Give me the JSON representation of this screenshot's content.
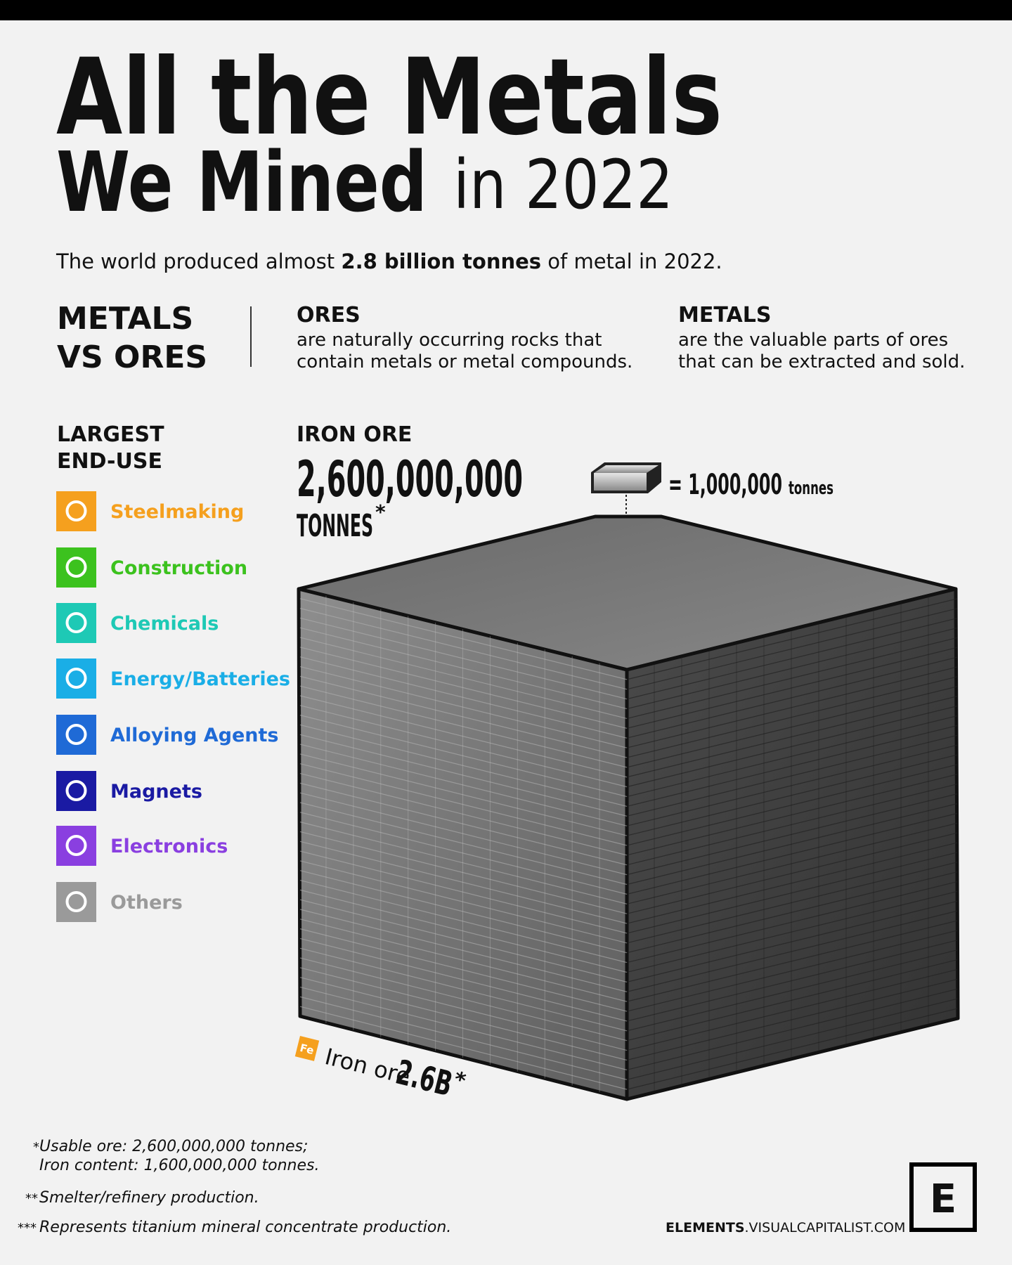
{
  "header": {
    "title_line1": "All the Metals",
    "title_line2_bold": "We Mined",
    "title_line2_rest": "in 2022"
  },
  "subtitle": {
    "pre": "The world produced almost ",
    "bold": "2.8 billion tonnes",
    "post": " of metal in 2022."
  },
  "definitions": {
    "heading_lines": [
      "METALS",
      "VS ORES"
    ],
    "ores": {
      "heading": "ORES",
      "lines": [
        "are naturally occurring rocks that",
        "contain metals or metal compounds."
      ]
    },
    "metals": {
      "heading": "METALS",
      "lines": [
        "are the valuable parts of ores",
        "that can be extracted and sold."
      ]
    }
  },
  "end_use": {
    "heading_lines": [
      "LARGEST",
      "END-USE"
    ],
    "items": [
      {
        "label": "Steelmaking",
        "color": "#f5a01e"
      },
      {
        "label": "Construction",
        "color": "#3cc21e"
      },
      {
        "label": "Chemicals",
        "color": "#1ec9b5"
      },
      {
        "label": "Energy/Batteries",
        "color": "#1aaee6"
      },
      {
        "label": "Alloying Agents",
        "color": "#1f6ad6"
      },
      {
        "label": "Magnets",
        "color": "#1a1aa3"
      },
      {
        "label": "Electronics",
        "color": "#8a3fe0"
      },
      {
        "label": "Others",
        "color": "#9a9a9a"
      }
    ]
  },
  "iron_ore": {
    "heading": "IRON ORE",
    "amount": "2,600,000,000",
    "unit": "TONNES",
    "unit_mark": "*",
    "scale": {
      "equals": "= 1,000,000",
      "unit": "tonnes"
    },
    "cube_label": {
      "symbol": "Fe",
      "name": "Iron ore",
      "amount": "2.6B",
      "mark": "*"
    }
  },
  "footnotes": [
    {
      "mark": "*",
      "lines": [
        "Usable ore: 2,600,000,000 tonnes;",
        "Iron content: 1,600,000,000 tonnes."
      ]
    },
    {
      "mark": "**",
      "lines": [
        "Smelter/refinery production."
      ]
    },
    {
      "mark": "***",
      "lines": [
        "Represents titanium mineral concentrate production."
      ]
    }
  ],
  "footer": {
    "site_bold": "ELEMENTS",
    "site_rest": ".VISUALCAPITALIST.COM",
    "logo": "E"
  }
}
